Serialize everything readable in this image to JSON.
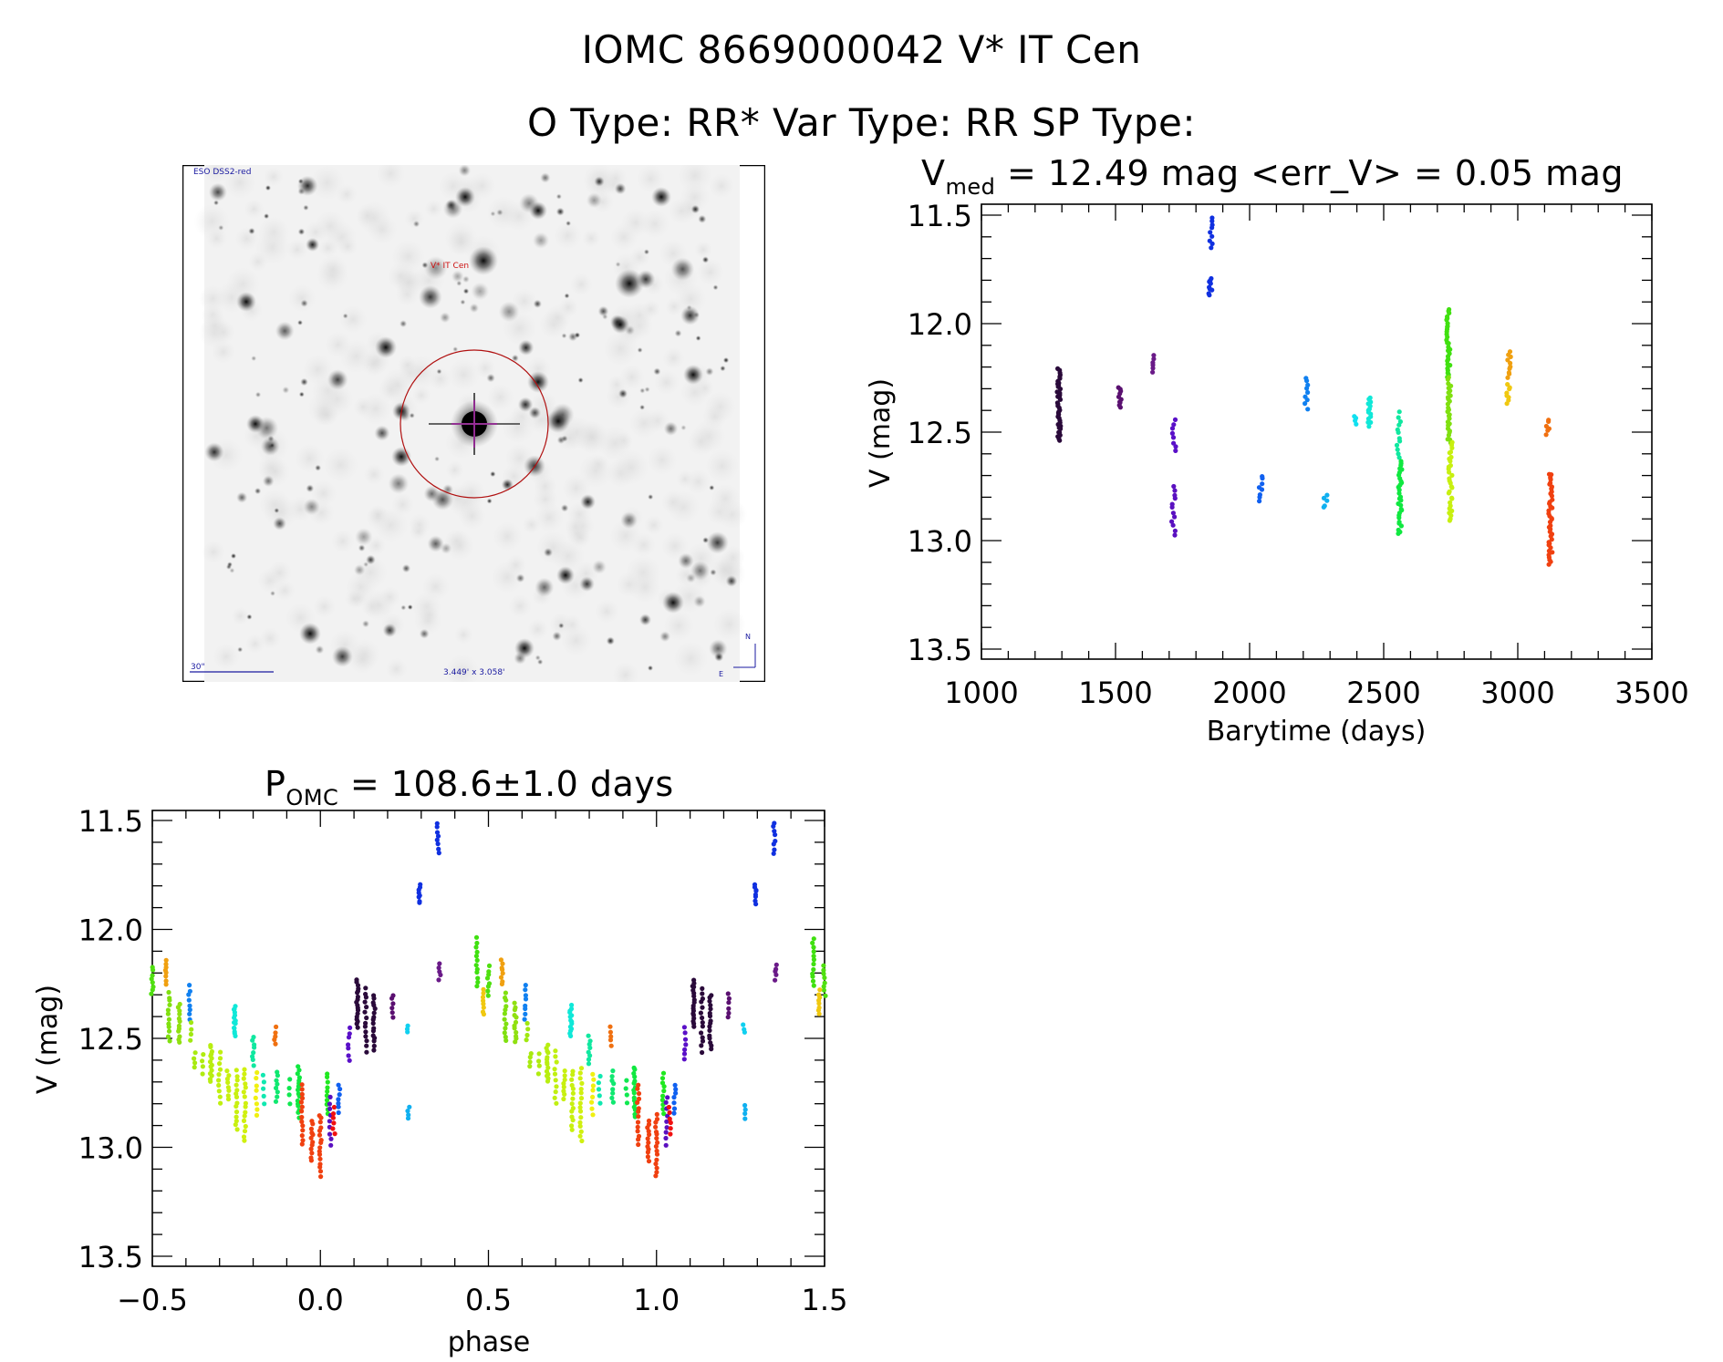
{
  "header": {
    "object_id": "IOMC 8669000042",
    "object_name": "V* IT Cen",
    "title_line1": "IOMC 8669000042    V* IT Cen",
    "title_line2": "O Type: RR*  Var Type: RR  SP Type:"
  },
  "sky_image": {
    "survey_label": "ESO DSS2-red",
    "target_label": "V* IT Cen",
    "scale_bar_label": "30\"",
    "fov_label": "3.449' x 3.058'",
    "north_label": "N",
    "east_label": "E",
    "circle_color": "#b01010",
    "crosshair_color": "#a020a0",
    "label_color": "#1a1aa0",
    "target_label_color": "#cc1010"
  },
  "chart_data": [
    {
      "type": "scatter",
      "id": "light_curve",
      "title_main": "V",
      "title_sub": "med",
      "title_rest": " = 12.49 mag <err_V> = 0.05 mag",
      "xlabel": "Barytime (days)",
      "ylabel": "V (mag)",
      "xlim": [
        1000,
        3500
      ],
      "ylim": [
        13.5,
        11.5
      ],
      "y_inverted": true,
      "xticks": [
        1000,
        1500,
        2000,
        2500,
        3000,
        3500
      ],
      "xtick_labels": [
        "1000",
        "1500",
        "2000",
        "2500",
        "3000",
        "3500"
      ],
      "yticks": [
        11.5,
        12.0,
        12.5,
        13.0,
        13.5
      ],
      "ytick_labels": [
        "11.5",
        "12.0",
        "12.5",
        "13.0",
        "13.5"
      ],
      "x_minor_step": 100,
      "y_minor_step": 0.1,
      "grid": false,
      "groups": [
        {
          "x": 1289,
          "ymin": 12.21,
          "ymax": 12.54,
          "n": 40,
          "color": "#2a0a3a"
        },
        {
          "x": 1517,
          "ymin": 12.29,
          "ymax": 12.39,
          "n": 10,
          "color": "#5a1070"
        },
        {
          "x": 1640,
          "ymin": 12.15,
          "ymax": 12.22,
          "n": 6,
          "color": "#6a1a88"
        },
        {
          "x": 1718,
          "ymin": 12.44,
          "ymax": 12.59,
          "n": 8,
          "color": "#5a10c8"
        },
        {
          "x": 1716,
          "ymin": 12.75,
          "ymax": 12.97,
          "n": 12,
          "color": "#5a10c0"
        },
        {
          "x": 1856,
          "ymin": 11.51,
          "ymax": 11.65,
          "n": 9,
          "color": "#1030e0"
        },
        {
          "x": 1854,
          "ymin": 11.79,
          "ymax": 11.87,
          "n": 9,
          "color": "#1030e0"
        },
        {
          "x": 2041,
          "ymin": 12.7,
          "ymax": 12.82,
          "n": 8,
          "color": "#1060f0"
        },
        {
          "x": 2211,
          "ymin": 12.25,
          "ymax": 12.39,
          "n": 9,
          "color": "#1080f0"
        },
        {
          "x": 2282,
          "ymin": 12.79,
          "ymax": 12.85,
          "n": 5,
          "color": "#10b0f0"
        },
        {
          "x": 2391,
          "ymin": 12.43,
          "ymax": 12.46,
          "n": 4,
          "color": "#10e0f0"
        },
        {
          "x": 2446,
          "ymin": 12.34,
          "ymax": 12.47,
          "n": 14,
          "color": "#10e8d8"
        },
        {
          "x": 2556,
          "ymin": 12.41,
          "ymax": 12.62,
          "n": 12,
          "color": "#10e8a0"
        },
        {
          "x": 2561,
          "ymin": 12.63,
          "ymax": 12.97,
          "n": 30,
          "color": "#10e840"
        },
        {
          "x": 2741,
          "ymin": 11.93,
          "ymax": 12.25,
          "n": 30,
          "color": "#40e010"
        },
        {
          "x": 2744,
          "ymin": 12.25,
          "ymax": 12.55,
          "n": 28,
          "color": "#80e010"
        },
        {
          "x": 2749,
          "ymin": 12.55,
          "ymax": 12.91,
          "n": 30,
          "color": "#c8f010"
        },
        {
          "x": 2968,
          "ymin": 12.13,
          "ymax": 12.25,
          "n": 10,
          "color": "#f0a010"
        },
        {
          "x": 2965,
          "ymin": 12.28,
          "ymax": 12.37,
          "n": 8,
          "color": "#f0c810"
        },
        {
          "x": 3112,
          "ymin": 12.44,
          "ymax": 12.51,
          "n": 6,
          "color": "#f07010"
        },
        {
          "x": 3122,
          "ymin": 12.69,
          "ymax": 13.11,
          "n": 40,
          "color": "#f04010"
        }
      ]
    },
    {
      "type": "scatter",
      "id": "phase_curve",
      "title_main": "P",
      "title_sub": "OMC",
      "title_rest": " = 108.6±1.0 days",
      "period_days": 108.6,
      "period_err_days": 1.0,
      "xlabel": "phase",
      "ylabel": "V (mag)",
      "xlim": [
        -0.5,
        1.5
      ],
      "ylim": [
        13.5,
        11.5
      ],
      "y_inverted": true,
      "xticks": [
        -0.5,
        0.0,
        0.5,
        1.0,
        1.5
      ],
      "xtick_labels": [
        "−0.5",
        "0.0",
        "0.5",
        "1.0",
        "1.5"
      ],
      "yticks": [
        11.5,
        12.0,
        12.5,
        13.0,
        13.5
      ],
      "ytick_labels": [
        "11.5",
        "12.0",
        "12.5",
        "13.0",
        "13.5"
      ],
      "x_minor_step": 0.1,
      "y_minor_step": 0.1,
      "grid": false,
      "repeat_cycles": [
        -1,
        0,
        1
      ],
      "groups": [
        {
          "x": 0.466,
          "ymin": 12.04,
          "ymax": 12.26,
          "n": 12,
          "color": "#40e010"
        },
        {
          "x": 0.5,
          "ymin": 12.17,
          "ymax": 12.3,
          "n": 8,
          "color": "#50e010"
        },
        {
          "x": 0.54,
          "ymin": 12.14,
          "ymax": 12.25,
          "n": 8,
          "color": "#f0a010"
        },
        {
          "x": 0.55,
          "ymin": 12.29,
          "ymax": 12.51,
          "n": 12,
          "color": "#80e010"
        },
        {
          "x": 0.58,
          "ymin": 12.34,
          "ymax": 12.52,
          "n": 12,
          "color": "#90e010"
        },
        {
          "x": 0.61,
          "ymin": 12.26,
          "ymax": 12.41,
          "n": 8,
          "color": "#1080f0"
        },
        {
          "x": 0.615,
          "ymin": 12.43,
          "ymax": 12.51,
          "n": 4,
          "color": "#a0e810"
        },
        {
          "x": 0.625,
          "ymin": 12.57,
          "ymax": 12.63,
          "n": 4,
          "color": "#a8ea10"
        },
        {
          "x": 0.65,
          "ymin": 12.57,
          "ymax": 12.66,
          "n": 4,
          "color": "#b0ec10"
        },
        {
          "x": 0.675,
          "ymin": 12.53,
          "ymax": 12.7,
          "n": 14,
          "color": "#b8ee10"
        },
        {
          "x": 0.7,
          "ymin": 12.56,
          "ymax": 12.8,
          "n": 10,
          "color": "#c0f010"
        },
        {
          "x": 0.725,
          "ymin": 12.65,
          "ymax": 12.78,
          "n": 8,
          "color": "#c8f010"
        },
        {
          "x": 0.745,
          "ymin": 12.35,
          "ymax": 12.49,
          "n": 14,
          "color": "#10e8d8"
        },
        {
          "x": 0.75,
          "ymin": 12.65,
          "ymax": 12.92,
          "n": 14,
          "color": "#c8f010"
        },
        {
          "x": 0.775,
          "ymin": 12.64,
          "ymax": 12.97,
          "n": 16,
          "color": "#d0f010"
        },
        {
          "x": 0.8,
          "ymin": 12.49,
          "ymax": 12.62,
          "n": 8,
          "color": "#10e8a0"
        },
        {
          "x": 0.81,
          "ymin": 12.66,
          "ymax": 12.85,
          "n": 8,
          "color": "#f0f010"
        },
        {
          "x": 0.83,
          "ymin": 12.67,
          "ymax": 12.8,
          "n": 5,
          "color": "#10e8b0"
        },
        {
          "x": 0.865,
          "ymin": 12.45,
          "ymax": 12.53,
          "n": 5,
          "color": "#f07010"
        },
        {
          "x": 0.87,
          "ymin": 12.65,
          "ymax": 12.79,
          "n": 8,
          "color": "#10e870"
        },
        {
          "x": 0.91,
          "ymin": 12.69,
          "ymax": 12.8,
          "n": 4,
          "color": "#10e850"
        },
        {
          "x": 0.935,
          "ymin": 12.63,
          "ymax": 12.86,
          "n": 16,
          "color": "#10e840"
        },
        {
          "x": 0.945,
          "ymin": 12.71,
          "ymax": 12.99,
          "n": 14,
          "color": "#f04010"
        },
        {
          "x": 0.975,
          "ymin": 12.88,
          "ymax": 13.06,
          "n": 12,
          "color": "#f04010"
        },
        {
          "x": 1.0,
          "ymin": 12.85,
          "ymax": 13.13,
          "n": 16,
          "color": "#f04010"
        },
        {
          "x": 1.02,
          "ymin": 12.66,
          "ymax": 12.85,
          "n": 10,
          "color": "#20e820"
        },
        {
          "x": 1.03,
          "ymin": 12.77,
          "ymax": 12.99,
          "n": 9,
          "color": "#5a10c0"
        },
        {
          "x": 1.04,
          "ymin": 12.82,
          "ymax": 12.94,
          "n": 6,
          "color": "#f01010"
        },
        {
          "x": 1.055,
          "ymin": 12.71,
          "ymax": 12.84,
          "n": 7,
          "color": "#1060f0"
        },
        {
          "x": 1.085,
          "ymin": 12.45,
          "ymax": 12.6,
          "n": 7,
          "color": "#5a10c8"
        },
        {
          "x": 1.11,
          "ymin": 12.23,
          "ymax": 12.45,
          "n": 18,
          "color": "#2a0a3a"
        },
        {
          "x": 1.135,
          "ymin": 12.27,
          "ymax": 12.56,
          "n": 14,
          "color": "#2a0a3a"
        },
        {
          "x": 1.16,
          "ymin": 12.3,
          "ymax": 12.55,
          "n": 16,
          "color": "#2a0a3a"
        },
        {
          "x": 1.215,
          "ymin": 12.3,
          "ymax": 12.4,
          "n": 6,
          "color": "#5a1070"
        },
        {
          "x": 1.26,
          "ymin": 12.44,
          "ymax": 12.47,
          "n": 3,
          "color": "#10d0f0"
        },
        {
          "x": 1.262,
          "ymin": 12.81,
          "ymax": 12.87,
          "n": 4,
          "color": "#10b0f0"
        },
        {
          "x": 1.295,
          "ymin": 11.79,
          "ymax": 11.88,
          "n": 8,
          "color": "#1030e0"
        },
        {
          "x": 1.35,
          "ymin": 11.51,
          "ymax": 11.65,
          "n": 8,
          "color": "#1030e0"
        },
        {
          "x": 1.355,
          "ymin": 12.16,
          "ymax": 12.23,
          "n": 5,
          "color": "#6a1a88"
        },
        {
          "x": 1.485,
          "ymin": 12.28,
          "ymax": 12.39,
          "n": 8,
          "color": "#f0c810"
        }
      ]
    }
  ]
}
